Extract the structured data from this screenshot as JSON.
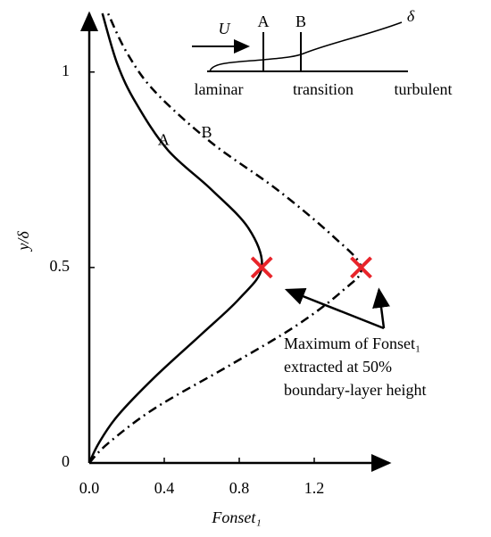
{
  "chart_data": {
    "type": "line",
    "x_label": "Fonset₁",
    "y_label": "y/δ",
    "xlim": [
      0,
      1.6
    ],
    "ylim": [
      0,
      1.15
    ],
    "xticks": [
      {
        "value": 0,
        "label": "0.0"
      },
      0.4,
      0.8,
      1.2
    ],
    "yticks": [
      0,
      0.5,
      1
    ],
    "series": [
      {
        "name": "A",
        "color": "#000000",
        "dash": "solid",
        "x": [
          0.0,
          0.05,
          0.15,
          0.35,
          0.6,
          0.8,
          0.92,
          0.85,
          0.65,
          0.42,
          0.25,
          0.15,
          0.07
        ],
        "values": [
          0,
          0.05,
          0.12,
          0.22,
          0.33,
          0.42,
          0.5,
          0.6,
          0.7,
          0.8,
          0.92,
          1.02,
          1.15
        ]
      },
      {
        "name": "B",
        "color": "#000000",
        "dash": "dashdot",
        "x": [
          0.0,
          0.1,
          0.35,
          0.75,
          1.1,
          1.35,
          1.45,
          1.3,
          1.0,
          0.65,
          0.35,
          0.2,
          0.1
        ],
        "values": [
          0,
          0.05,
          0.14,
          0.25,
          0.35,
          0.44,
          0.5,
          0.58,
          0.7,
          0.82,
          0.95,
          1.05,
          1.15
        ]
      }
    ],
    "markers": {
      "color": "#e8242a",
      "x": [
        0.92,
        1.45
      ],
      "values": [
        0.5,
        0.5
      ]
    },
    "annotation": [
      "Maximum of Fonset₁",
      "extracted at 50%",
      "boundary-layer height"
    ],
    "inset": {
      "velocity": "U⃗",
      "thickness": "δ",
      "stations": [
        "A",
        "B"
      ],
      "regions": [
        "laminar",
        "transition",
        "turbulent"
      ]
    }
  }
}
